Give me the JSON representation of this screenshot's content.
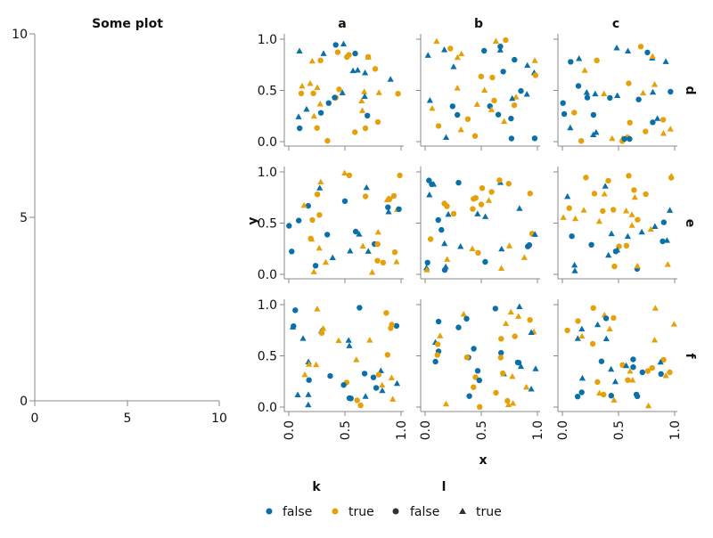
{
  "colors": {
    "false": "#0b6fa8",
    "true": "#e5a10a",
    "axis": "#888888",
    "legend_neutral": "#333333"
  },
  "chart_data": [
    {
      "type": "scatter",
      "title": "Some plot",
      "xlim": [
        0,
        10
      ],
      "ylim": [
        0,
        10
      ],
      "x_ticks": [
        "0",
        "5",
        "10"
      ],
      "y_ticks": [
        "0",
        "5",
        "10"
      ],
      "points": []
    },
    {
      "type": "scatter",
      "xlabel": "x",
      "ylabel": "y",
      "xlim": [
        0,
        1
      ],
      "ylim": [
        0,
        1
      ],
      "x_ticks": [
        "0.0",
        "0.5",
        "1.0"
      ],
      "y_ticks": [
        "0.0",
        "0.5",
        "1.0"
      ],
      "col_labels": [
        "a",
        "b",
        "c"
      ],
      "row_labels": [
        "d",
        "e",
        "f"
      ],
      "legend": {
        "k": {
          "title": "k",
          "entries": [
            "false",
            "true"
          ]
        },
        "l": {
          "title": "l",
          "entries": [
            "false",
            "true"
          ]
        }
      }
    }
  ]
}
